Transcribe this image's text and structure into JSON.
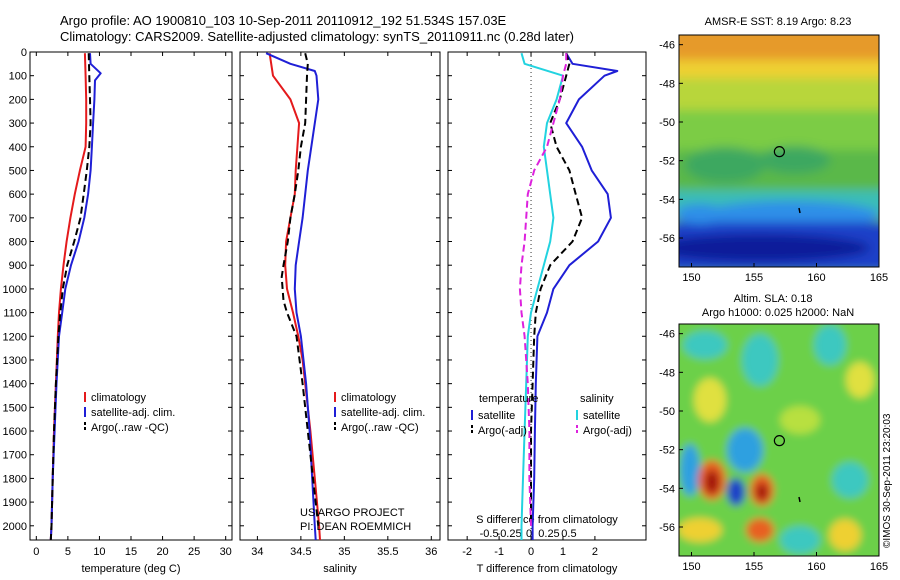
{
  "header": {
    "title_line1": "Argo profile: AO 1900810_103 10-Sep-2011 20110912_192 51.534S 157.03E",
    "title_line2": "Climatology: CARS2009. Satellite-adjusted climatology: synTS_20110911.nc (0.28d later)"
  },
  "credit": {
    "line1": "US ARGO PROJECT",
    "line2": "PI: DEAN ROEMMICH",
    "imos": "©IMOS 30-Sep-2011 23:20:03"
  },
  "colors": {
    "climatology": "#e41a1c",
    "satellite": "#1f1fd6",
    "argo": "#000000",
    "sal_satellite": "#22d3e0",
    "sal_argo": "#dd22dd"
  },
  "chart_data": [
    {
      "type": "line",
      "id": "temperature",
      "xlabel": "temperature (deg C)",
      "xlim": [
        -1,
        31
      ],
      "xticks": [
        0,
        5,
        10,
        15,
        20,
        25,
        30
      ],
      "ylim": [
        0,
        2060
      ],
      "yticks": [
        0,
        100,
        200,
        300,
        400,
        500,
        600,
        700,
        800,
        900,
        1000,
        1100,
        1200,
        1300,
        1400,
        1500,
        1600,
        1700,
        1800,
        1900,
        2000
      ],
      "legend": [
        "climatology",
        "satellite-adj. clim.",
        "Argo(..raw -QC)"
      ],
      "series": [
        {
          "name": "climatology",
          "depth": [
            5,
            100,
            200,
            300,
            400,
            500,
            600,
            700,
            800,
            900,
            1000,
            1100,
            1200,
            1400,
            1600,
            1800,
            2000,
            2060
          ],
          "values": [
            7.7,
            7.8,
            7.9,
            7.9,
            7.8,
            6.9,
            6.1,
            5.4,
            4.8,
            4.3,
            3.9,
            3.6,
            3.4,
            3.1,
            2.8,
            2.6,
            2.4,
            2.3
          ]
        },
        {
          "name": "satellite-adj. clim.",
          "depth": [
            5,
            50,
            90,
            120,
            200,
            300,
            400,
            500,
            600,
            700,
            800,
            900,
            1000,
            1100,
            1200,
            1400,
            1600,
            1800,
            2000,
            2060
          ],
          "values": [
            8.5,
            8.6,
            10.2,
            9.3,
            9.2,
            9.0,
            8.8,
            8.6,
            8.2,
            7.6,
            6.7,
            5.5,
            4.6,
            4.1,
            3.6,
            3.2,
            2.9,
            2.6,
            2.4,
            2.3
          ]
        },
        {
          "name": "Argo(..raw -QC)",
          "depth": [
            5,
            100,
            200,
            300,
            400,
            500,
            600,
            700,
            800,
            900,
            1000,
            1100,
            1200,
            1400,
            1600,
            1800,
            2000,
            2060
          ],
          "values": [
            8.3,
            8.4,
            8.5,
            8.6,
            8.4,
            8.0,
            7.5,
            7.0,
            6.0,
            4.9,
            4.2,
            3.8,
            3.5,
            3.1,
            2.8,
            2.6,
            2.4,
            2.3
          ]
        }
      ]
    },
    {
      "type": "line",
      "id": "salinity",
      "xlabel": "salinity",
      "xlim": [
        33.8,
        36.1
      ],
      "xticks": [
        34,
        34.5,
        35,
        35.5,
        36
      ],
      "ylim": [
        0,
        2060
      ],
      "legend": [
        "climatology",
        "satellite-adj. clim.",
        "Argo(..raw -QC)"
      ],
      "series": [
        {
          "name": "climatology",
          "depth": [
            5,
            100,
            200,
            300,
            400,
            500,
            600,
            700,
            800,
            900,
            1000,
            1100,
            1200,
            1300,
            1400,
            1600,
            1800,
            2000,
            2060
          ],
          "values": [
            34.14,
            34.18,
            34.38,
            34.48,
            34.46,
            34.44,
            34.43,
            34.38,
            34.33,
            34.32,
            34.34,
            34.41,
            34.47,
            34.52,
            34.55,
            34.61,
            34.66,
            34.71,
            34.72
          ]
        },
        {
          "name": "satellite-adj. clim.",
          "depth": [
            5,
            50,
            80,
            100,
            200,
            300,
            400,
            500,
            600,
            700,
            800,
            900,
            1000,
            1100,
            1200,
            1300,
            1400,
            1600,
            1800,
            2000,
            2060
          ],
          "values": [
            34.1,
            34.38,
            34.66,
            34.68,
            34.7,
            34.66,
            34.62,
            34.58,
            34.55,
            34.52,
            34.48,
            34.44,
            34.43,
            34.45,
            34.5,
            34.53,
            34.56,
            34.6,
            34.63,
            34.66,
            34.67
          ]
        },
        {
          "name": "Argo(..raw -QC)",
          "depth": [
            5,
            50,
            100,
            200,
            300,
            400,
            500,
            600,
            700,
            800,
            900,
            950,
            1050,
            1100,
            1200,
            1400,
            1600,
            1800,
            2000
          ],
          "values": [
            34.55,
            34.58,
            34.57,
            34.56,
            34.55,
            34.5,
            34.47,
            34.43,
            34.38,
            34.35,
            34.3,
            34.28,
            34.3,
            34.34,
            34.45,
            34.52,
            34.58,
            34.64,
            34.7
          ]
        }
      ]
    },
    {
      "type": "line",
      "id": "difference",
      "xlabel": "T difference from climatology",
      "xlabel2": "S difference from climatology",
      "xlim": [
        -2.6,
        3.6
      ],
      "xticks": [
        -2,
        -1,
        0,
        1,
        2
      ],
      "xticks2": [
        "-0.5",
        "-0.25",
        "0",
        "0.25",
        "0.5"
      ],
      "ylim": [
        0,
        2060
      ],
      "legend_titles": [
        "temperature",
        "salinity"
      ],
      "legend": [
        "satellite",
        "Argo(-adj)",
        "satellite",
        "Argo(-adj)"
      ],
      "series": [
        {
          "name": "temperature satellite",
          "depth": [
            5,
            50,
            80,
            100,
            200,
            300,
            400,
            500,
            600,
            700,
            800,
            900,
            1000,
            1100,
            1200,
            1400,
            1600,
            1800,
            2000,
            2060
          ],
          "values": [
            1.1,
            1.3,
            2.7,
            2.3,
            1.5,
            1.1,
            1.6,
            1.9,
            2.4,
            2.5,
            2.1,
            1.2,
            0.7,
            0.5,
            0.2,
            0.15,
            0.12,
            0.1,
            0.05,
            0.05
          ]
        },
        {
          "name": "temperature Argo(-adj)",
          "depth": [
            5,
            50,
            100,
            200,
            300,
            400,
            500,
            600,
            700,
            800,
            900,
            1000,
            1100,
            1200,
            1400,
            1600,
            1800,
            2000
          ],
          "values": [
            1.1,
            1.2,
            1.1,
            0.9,
            0.6,
            0.8,
            1.2,
            1.4,
            1.6,
            1.3,
            0.6,
            0.3,
            0.15,
            0.1,
            0.05,
            0.0,
            0.0,
            0.0
          ]
        },
        {
          "name": "salinity satellite",
          "depth": [
            5,
            50,
            100,
            200,
            300,
            400,
            500,
            600,
            700,
            800,
            900,
            1000,
            1100,
            1200,
            1400,
            1600,
            1800,
            2000,
            2060
          ],
          "values": [
            -0.3,
            -0.2,
            1.0,
            0.8,
            0.5,
            0.4,
            0.5,
            0.6,
            0.7,
            0.6,
            0.4,
            0.2,
            0.0,
            -0.1,
            -0.15,
            -0.2,
            -0.25,
            -0.3,
            -0.3
          ]
        },
        {
          "name": "salinity Argo(-adj)",
          "depth": [
            5,
            50,
            100,
            200,
            300,
            400,
            500,
            600,
            700,
            800,
            900,
            1000,
            1100,
            1200,
            1400,
            1600,
            1800,
            2000
          ],
          "values": [
            1.1,
            1.1,
            1.0,
            0.9,
            0.7,
            0.5,
            0.1,
            -0.1,
            -0.15,
            -0.2,
            -0.3,
            -0.35,
            -0.3,
            -0.2,
            -0.1,
            -0.05,
            -0.05,
            0.0
          ]
        }
      ]
    },
    {
      "type": "heatmap",
      "id": "sst_map",
      "title": "AMSR-E SST: 8.19 Argo: 8.23",
      "xlim": [
        149,
        165
      ],
      "ylim": [
        -57.5,
        -45.5
      ],
      "xticks": [
        150,
        155,
        160,
        165
      ],
      "yticks": [
        -46,
        -48,
        -50,
        -52,
        -54,
        -56
      ],
      "marker": {
        "lon": 157.03,
        "lat": -51.534
      }
    },
    {
      "type": "heatmap",
      "id": "sla_map",
      "title": "Altim. SLA: 0.18",
      "subtitle": "Argo h1000: 0.025 h2000: NaN",
      "xlim": [
        149,
        165
      ],
      "ylim": [
        -57.5,
        -45.5
      ],
      "xticks": [
        150,
        155,
        160,
        165
      ],
      "yticks": [
        -46,
        -48,
        -50,
        -52,
        -54,
        -56
      ],
      "marker": {
        "lon": 157.03,
        "lat": -51.534
      }
    }
  ]
}
